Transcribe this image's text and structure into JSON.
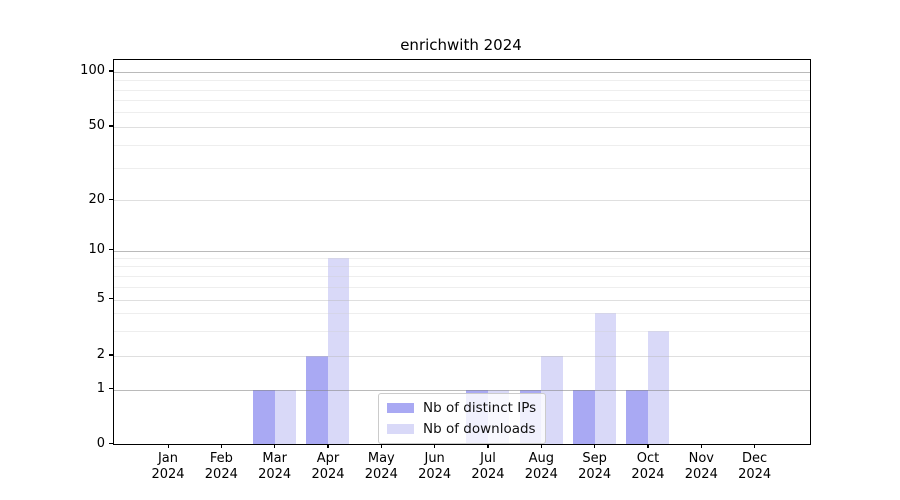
{
  "title": "enrichwith 2024",
  "chart_data": {
    "type": "bar",
    "title": "enrichwith 2024",
    "categories": [
      "Jan",
      "Feb",
      "Mar",
      "Apr",
      "May",
      "Jun",
      "Jul",
      "Aug",
      "Sep",
      "Oct",
      "Nov",
      "Dec"
    ],
    "category_year": "2024",
    "series": [
      {
        "name": "Nb of distinct IPs",
        "color": "#a9a9f3",
        "values": [
          0,
          0,
          1,
          2,
          0,
          0,
          1,
          1,
          1,
          1,
          0,
          0
        ]
      },
      {
        "name": "Nb of downloads",
        "color": "#d9d9f8",
        "values": [
          0,
          0,
          1,
          9,
          0,
          0,
          1,
          2,
          4,
          3,
          0,
          0
        ]
      }
    ],
    "xlabel": "",
    "ylabel": "",
    "y_axis": {
      "scale": "log-like",
      "major_ticks": [
        0,
        1,
        2,
        5,
        10,
        20,
        50,
        100
      ],
      "minor_gridlines": [
        3,
        4,
        6,
        7,
        8,
        9,
        30,
        40,
        60,
        70,
        80,
        90
      ],
      "ylim": [
        0,
        116
      ]
    },
    "grid": "on",
    "legend_position": "inside-bottom-center"
  },
  "legend": {
    "items": [
      "Nb of distinct IPs",
      "Nb of downloads"
    ]
  }
}
